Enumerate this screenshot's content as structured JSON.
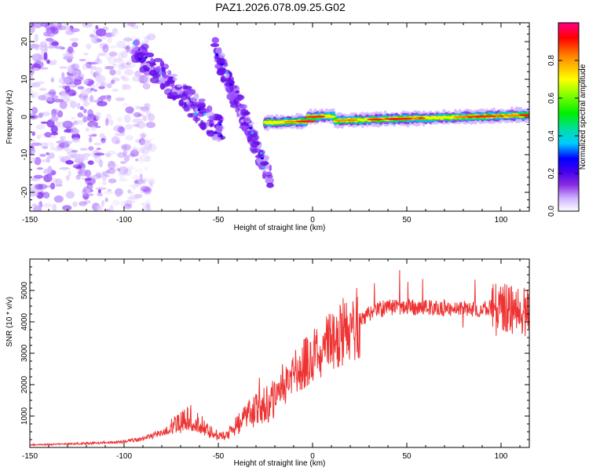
{
  "chart_data": [
    {
      "type": "heatmap",
      "title": "PAZ1.2026.078.09.25.G02",
      "xlabel": "Height of straight line (km)",
      "ylabel": "Frequency (Hz)",
      "xlim": [
        -150,
        115
      ],
      "ylim": [
        -25,
        25
      ],
      "xticks": [
        -150,
        -100,
        -50,
        0,
        50,
        100
      ],
      "yticks": [
        -20,
        -10,
        0,
        10,
        20
      ],
      "colorbar": {
        "label": "Normalized spectral amplitude",
        "range": [
          0,
          1
        ],
        "ticks": [
          "0.0",
          "0.2",
          "0.4",
          "0.6",
          "0.8"
        ]
      },
      "features": {
        "noise_region_x": [
          -150,
          -85
        ],
        "diagonal_band_1": {
          "x": [
            -95,
            -48
          ],
          "freq": [
            18,
            -4
          ]
        },
        "diagonal_band_2": {
          "x": [
            -52,
            -22
          ],
          "freq": [
            18,
            -17
          ]
        },
        "stable_tone": {
          "x": [
            -25,
            115
          ],
          "freq": [
            -1.5,
            0.5
          ]
        },
        "tone_bump": {
          "x": [
            0,
            8
          ],
          "freq": 1.2
        }
      }
    },
    {
      "type": "line",
      "xlabel": "Height of straight line (km)",
      "ylabel": "SNR (10 * v/v)",
      "xlim": [
        -150,
        115
      ],
      "ylim": [
        0,
        6000
      ],
      "xticks": [
        -150,
        -100,
        -50,
        0,
        50,
        100
      ],
      "yticks": [
        1000,
        2000,
        3000,
        4000,
        5000
      ],
      "series": [
        {
          "name": "SNR",
          "color": "#ee3333",
          "x": [
            -150,
            -120,
            -100,
            -90,
            -80,
            -70,
            -65,
            -60,
            -55,
            -50,
            -45,
            -40,
            -35,
            -30,
            -25,
            -20,
            -15,
            -10,
            -5,
            0,
            5,
            10,
            15,
            20,
            25,
            30,
            35,
            40,
            50,
            60,
            70,
            80,
            90,
            100,
            105,
            110,
            115
          ],
          "values": [
            80,
            130,
            180,
            280,
            480,
            780,
            950,
            720,
            500,
            380,
            420,
            720,
            980,
            1180,
            1350,
            1580,
            1950,
            2250,
            2650,
            2950,
            3150,
            3350,
            3600,
            3850,
            4050,
            4250,
            4400,
            4450,
            4450,
            4480,
            4450,
            4420,
            4420,
            4450,
            4400,
            4320,
            4300
          ]
        }
      ]
    }
  ]
}
